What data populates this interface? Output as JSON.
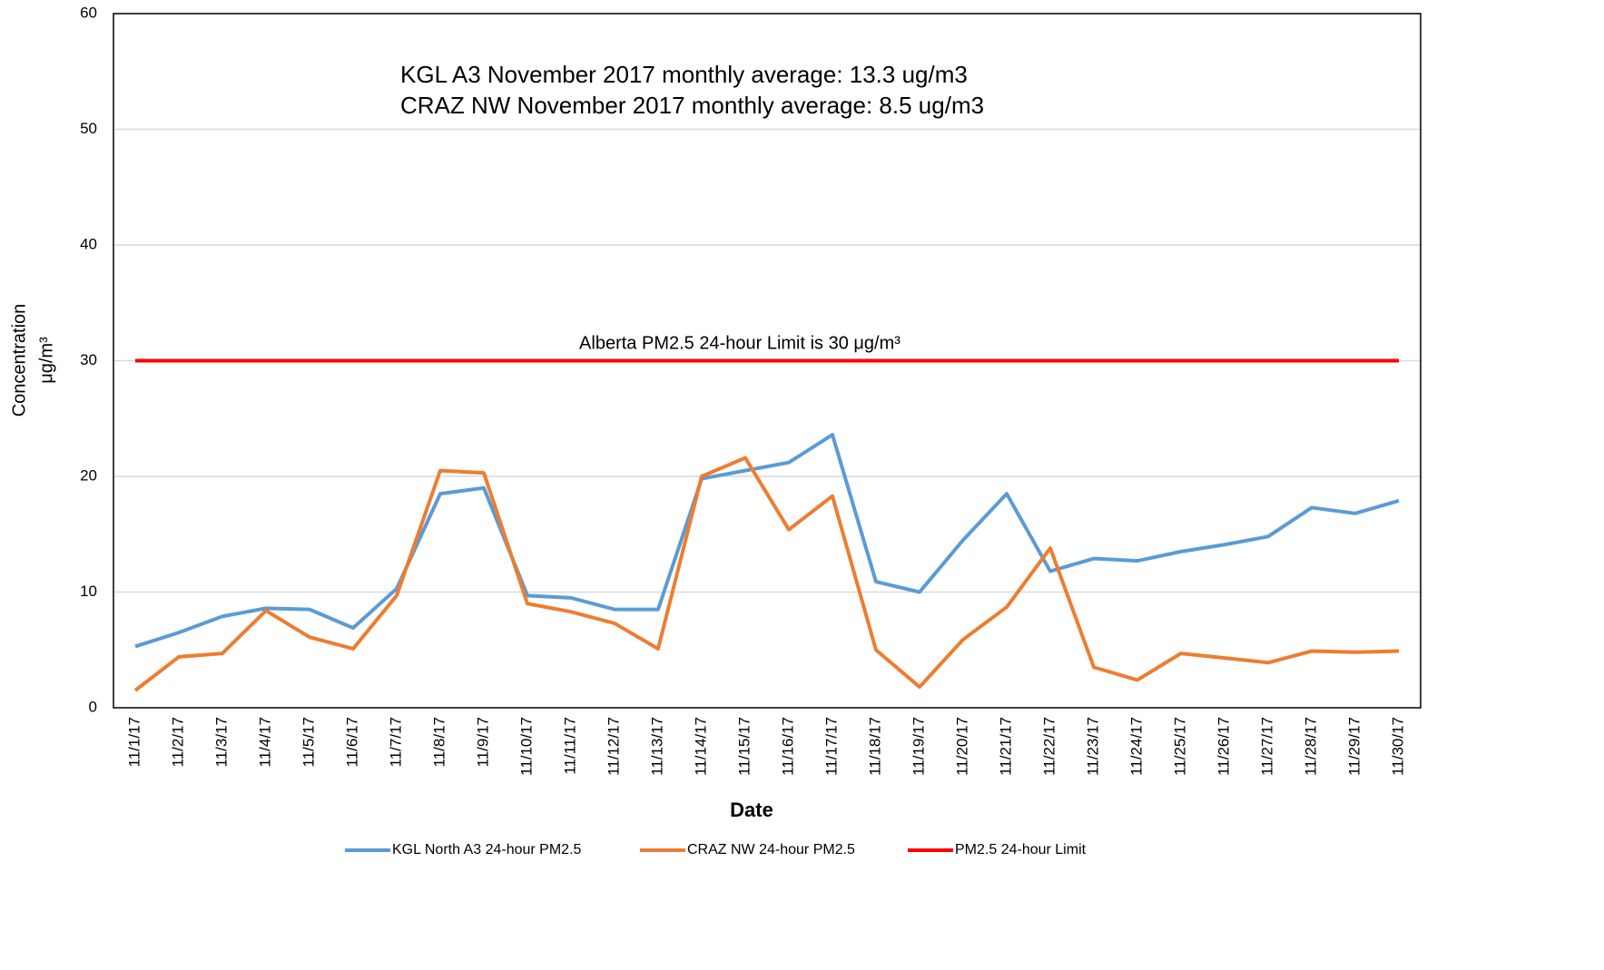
{
  "chart_data": {
    "type": "line",
    "categories": [
      "11/1/17",
      "11/2/17",
      "11/3/17",
      "11/4/17",
      "11/5/17",
      "11/6/17",
      "11/7/17",
      "11/8/17",
      "11/9/17",
      "11/10/17",
      "11/11/17",
      "11/12/17",
      "11/13/17",
      "11/14/17",
      "11/15/17",
      "11/16/17",
      "11/17/17",
      "11/18/17",
      "11/19/17",
      "11/20/17",
      "11/21/17",
      "11/22/17",
      "11/23/17",
      "11/24/17",
      "11/25/17",
      "11/26/17",
      "11/27/17",
      "11/28/17",
      "11/29/17",
      "11/30/17"
    ],
    "series": [
      {
        "name": "KGL North A3 24-hour PM2.5",
        "color": "#5b9bd5",
        "values": [
          5.3,
          6.5,
          7.9,
          8.6,
          8.5,
          6.9,
          10.3,
          18.5,
          19.0,
          9.7,
          9.5,
          8.5,
          8.5,
          19.8,
          20.5,
          21.2,
          23.6,
          10.9,
          10.0,
          14.5,
          18.5,
          11.8,
          12.9,
          12.7,
          13.5,
          14.1,
          14.8,
          17.3,
          16.8,
          17.9
        ]
      },
      {
        "name": "CRAZ NW 24-hour PM2.5",
        "color": "#ed7d31",
        "values": [
          1.5,
          4.4,
          4.7,
          8.4,
          6.1,
          5.1,
          9.7,
          20.5,
          20.3,
          9.0,
          8.3,
          7.3,
          5.1,
          20.0,
          21.6,
          15.4,
          18.3,
          5.0,
          1.8,
          5.9,
          8.7,
          13.8,
          3.5,
          2.4,
          4.7,
          4.3,
          3.9,
          4.9,
          4.8,
          4.9
        ]
      },
      {
        "name": "PM2.5 24-hour Limit",
        "color": "#ff0000",
        "values": [
          30,
          30,
          30,
          30,
          30,
          30,
          30,
          30,
          30,
          30,
          30,
          30,
          30,
          30,
          30,
          30,
          30,
          30,
          30,
          30,
          30,
          30,
          30,
          30,
          30,
          30,
          30,
          30,
          30,
          30
        ]
      }
    ],
    "ylim": [
      0,
      60
    ],
    "yticks": [
      0,
      10,
      20,
      30,
      40,
      50,
      60
    ],
    "grid": true,
    "x_label": "Date",
    "y_label": [
      "Concentration",
      "μg/m³"
    ],
    "annotations": [
      "KGL A3 November 2017 monthly average: 13.3 ug/m3",
      "CRAZ NW November 2017 monthly average: 8.5 ug/m3",
      "Alberta PM2.5 24-hour Limit is 30 μg/m³"
    ],
    "legend": "bottom"
  }
}
